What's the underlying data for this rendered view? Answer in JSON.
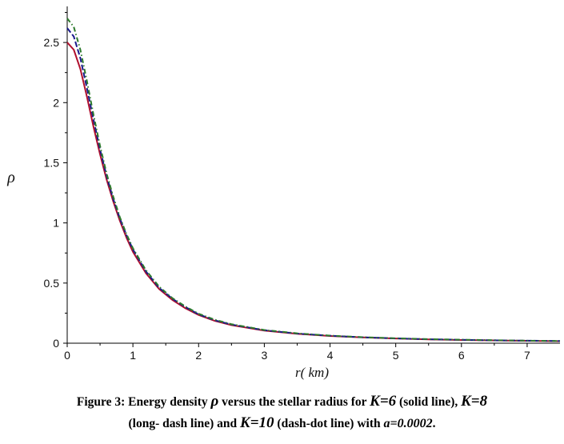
{
  "chart_data": {
    "type": "line",
    "xlabel": "r( km)",
    "ylabel": "ρ",
    "xlim": [
      0,
      7.5
    ],
    "ylim": [
      0,
      2.8
    ],
    "x_ticks": [
      "0",
      "1",
      "2",
      "3",
      "4",
      "5",
      "6",
      "7"
    ],
    "y_ticks": [
      "0",
      "0.5",
      "1",
      "1.5",
      "2",
      "2.5"
    ],
    "grid": false,
    "legend": "none",
    "series": [
      {
        "style": "solid",
        "color": "#b0102e",
        "x": [
          0,
          0.1,
          0.2,
          0.3,
          0.4,
          0.5,
          0.6,
          0.7,
          0.8,
          0.9,
          1.0,
          1.2,
          1.4,
          1.6,
          1.8,
          2.0,
          2.25,
          2.5,
          3.0,
          3.5,
          4.0,
          4.5,
          5.0,
          5.5,
          6.0,
          6.5,
          7.0,
          7.5
        ],
        "y": [
          2.5,
          2.44,
          2.28,
          2.05,
          1.8,
          1.57,
          1.36,
          1.18,
          1.02,
          0.88,
          0.76,
          0.58,
          0.45,
          0.36,
          0.29,
          0.235,
          0.185,
          0.15,
          0.105,
          0.078,
          0.06,
          0.048,
          0.039,
          0.032,
          0.027,
          0.023,
          0.02,
          0.017
        ]
      },
      {
        "style": "long-dash",
        "color": "#1a1a8c",
        "x": [
          0,
          0.1,
          0.2,
          0.3,
          0.4,
          0.5,
          0.6,
          0.7,
          0.8,
          0.9,
          1.0,
          1.2,
          1.4,
          1.6,
          1.8,
          2.0,
          2.25,
          2.5,
          3.0,
          3.5,
          4.0,
          4.5,
          5.0,
          5.5,
          6.0,
          6.5,
          7.0,
          7.5
        ],
        "y": [
          2.62,
          2.55,
          2.37,
          2.12,
          1.86,
          1.61,
          1.39,
          1.2,
          1.04,
          0.9,
          0.78,
          0.595,
          0.46,
          0.37,
          0.3,
          0.24,
          0.19,
          0.155,
          0.108,
          0.08,
          0.062,
          0.049,
          0.04,
          0.033,
          0.028,
          0.024,
          0.021,
          0.018
        ]
      },
      {
        "style": "dash-dot",
        "color": "#2d7a2d",
        "x": [
          0,
          0.1,
          0.2,
          0.3,
          0.4,
          0.5,
          0.6,
          0.7,
          0.8,
          0.9,
          1.0,
          1.2,
          1.4,
          1.6,
          1.8,
          2.0,
          2.25,
          2.5,
          3.0,
          3.5,
          4.0,
          4.5,
          5.0,
          5.5,
          6.0,
          6.5,
          7.0,
          7.5
        ],
        "y": [
          2.7,
          2.63,
          2.44,
          2.18,
          1.9,
          1.64,
          1.41,
          1.22,
          1.05,
          0.91,
          0.79,
          0.605,
          0.47,
          0.375,
          0.305,
          0.245,
          0.195,
          0.158,
          0.11,
          0.082,
          0.063,
          0.05,
          0.041,
          0.034,
          0.029,
          0.025,
          0.021,
          0.018
        ]
      }
    ]
  },
  "caption": {
    "p1": "Figure 3: Energy density ",
    "rho": "ρ",
    "p2": " versus the stellar radius for ",
    "k6": "K=6",
    "p3": " (solid line), ",
    "k8": "K=8",
    "p4": "(long- dash line) and ",
    "k10": "K=10",
    "p5": " (dash-dot line) with ",
    "a": "a=0.0002",
    "p6": "."
  }
}
